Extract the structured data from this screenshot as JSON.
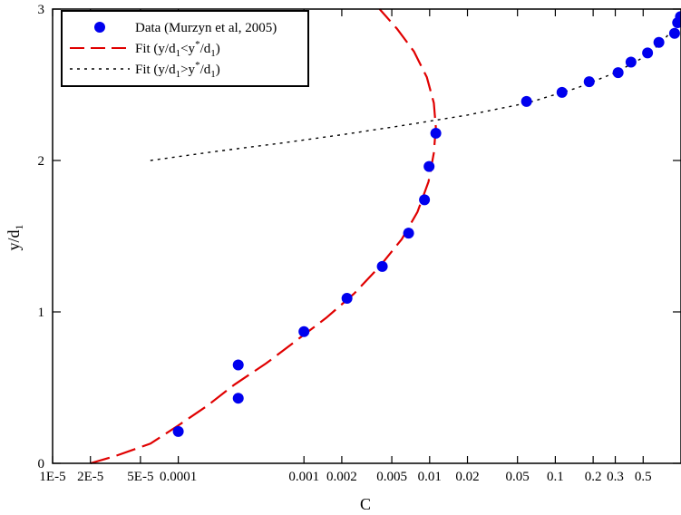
{
  "chart_data": {
    "type": "scatter",
    "xlabel": "C",
    "ylabel_main": "y/d",
    "ylabel_sub": "1",
    "x_scale": "log",
    "xlim": [
      1e-05,
      1
    ],
    "ylim": [
      0,
      3
    ],
    "x_ticks": [
      {
        "value": 1e-05,
        "label": "1E-5"
      },
      {
        "value": 2e-05,
        "label": "2E-5"
      },
      {
        "value": 5e-05,
        "label": "5E-5"
      },
      {
        "value": 0.0001,
        "label": "0.0001"
      },
      {
        "value": 0.001,
        "label": "0.001"
      },
      {
        "value": 0.002,
        "label": "0.002"
      },
      {
        "value": 0.005,
        "label": "0.005"
      },
      {
        "value": 0.01,
        "label": "0.01"
      },
      {
        "value": 0.02,
        "label": "0.02"
      },
      {
        "value": 0.05,
        "label": "0.05"
      },
      {
        "value": 0.1,
        "label": "0.1"
      },
      {
        "value": 0.2,
        "label": "0.2"
      },
      {
        "value": 0.3,
        "label": "0.3"
      },
      {
        "value": 0.5,
        "label": "0.5"
      }
    ],
    "y_ticks": [
      {
        "value": 0,
        "label": "0"
      },
      {
        "value": 1,
        "label": "1"
      },
      {
        "value": 2,
        "label": "2"
      },
      {
        "value": 3,
        "label": "3"
      }
    ],
    "grid": false,
    "legend_position": "top-left",
    "colors": {
      "data": "#0000ee",
      "fit_lower": "#e00000",
      "fit_upper": "#000000"
    },
    "series": [
      {
        "name": "Data (Murzyn et al, 2005)",
        "kind": "markers",
        "points": [
          {
            "x": 0.0001,
            "y": 0.21
          },
          {
            "x": 0.0003,
            "y": 0.43
          },
          {
            "x": 0.0003,
            "y": 0.65
          },
          {
            "x": 0.001,
            "y": 0.87
          },
          {
            "x": 0.0022,
            "y": 1.09
          },
          {
            "x": 0.0042,
            "y": 1.3
          },
          {
            "x": 0.0068,
            "y": 1.52
          },
          {
            "x": 0.0091,
            "y": 1.74
          },
          {
            "x": 0.0099,
            "y": 1.96
          },
          {
            "x": 0.0112,
            "y": 2.18
          },
          {
            "x": 0.059,
            "y": 2.39
          },
          {
            "x": 0.113,
            "y": 2.45
          },
          {
            "x": 0.186,
            "y": 2.52
          },
          {
            "x": 0.316,
            "y": 2.58
          },
          {
            "x": 0.4,
            "y": 2.65
          },
          {
            "x": 0.542,
            "y": 2.71
          },
          {
            "x": 0.667,
            "y": 2.78
          },
          {
            "x": 0.889,
            "y": 2.84
          },
          {
            "x": 0.94,
            "y": 2.91
          },
          {
            "x": 0.99,
            "y": 2.95
          }
        ]
      },
      {
        "name_main": "Fit (y/d",
        "name_parts": [
          "Fit (y/d",
          "1",
          "<y",
          "*",
          "/d",
          "1",
          ")"
        ],
        "kind": "dashed-line",
        "points": [
          {
            "x": 2e-05,
            "y": 0.0
          },
          {
            "x": 3.2e-05,
            "y": 0.05
          },
          {
            "x": 6e-05,
            "y": 0.13
          },
          {
            "x": 0.0001,
            "y": 0.25
          },
          {
            "x": 0.00017,
            "y": 0.38
          },
          {
            "x": 0.00028,
            "y": 0.52
          },
          {
            "x": 0.0005,
            "y": 0.66
          },
          {
            "x": 0.0009,
            "y": 0.82
          },
          {
            "x": 0.0015,
            "y": 0.96
          },
          {
            "x": 0.0025,
            "y": 1.12
          },
          {
            "x": 0.004,
            "y": 1.3
          },
          {
            "x": 0.006,
            "y": 1.48
          },
          {
            "x": 0.008,
            "y": 1.66
          },
          {
            "x": 0.0098,
            "y": 1.86
          },
          {
            "x": 0.0108,
            "y": 2.05
          },
          {
            "x": 0.0112,
            "y": 2.22
          },
          {
            "x": 0.0108,
            "y": 2.38
          },
          {
            "x": 0.0095,
            "y": 2.55
          },
          {
            "x": 0.0075,
            "y": 2.72
          },
          {
            "x": 0.0055,
            "y": 2.87
          },
          {
            "x": 0.0042,
            "y": 2.98
          },
          {
            "x": 0.004,
            "y": 3.0
          }
        ]
      },
      {
        "name_parts": [
          "Fit (y/d",
          "1",
          ">y",
          "*",
          "/d",
          "1",
          ")"
        ],
        "kind": "dotted-line",
        "points": [
          {
            "x": 6e-05,
            "y": 2.0
          },
          {
            "x": 0.0002,
            "y": 2.06
          },
          {
            "x": 0.0006,
            "y": 2.11
          },
          {
            "x": 0.002,
            "y": 2.17
          },
          {
            "x": 0.006,
            "y": 2.23
          },
          {
            "x": 0.02,
            "y": 2.3
          },
          {
            "x": 0.06,
            "y": 2.38
          },
          {
            "x": 0.15,
            "y": 2.48
          },
          {
            "x": 0.3,
            "y": 2.58
          },
          {
            "x": 0.5,
            "y": 2.68
          },
          {
            "x": 0.7,
            "y": 2.78
          },
          {
            "x": 0.85,
            "y": 2.86
          },
          {
            "x": 1.0,
            "y": 2.96
          }
        ]
      }
    ]
  }
}
